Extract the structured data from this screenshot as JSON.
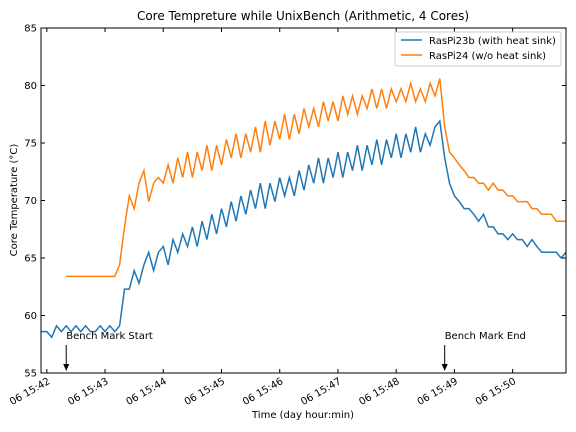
{
  "chart_data": {
    "type": "line",
    "title": "Core Tempreture while UnixBench (Arithmetic, 4 Cores)",
    "xlabel": "Time (day hour:min)",
    "ylabel": "Core Temperature (°C)",
    "x_range": [
      "06 15:41:54",
      "06 15:50:55"
    ],
    "ylim": [
      55,
      85
    ],
    "y_ticks": [
      55,
      60,
      65,
      70,
      75,
      80,
      85
    ],
    "x_ticks": [
      "06 15:42",
      "06 15:43",
      "06 15:44",
      "06 15:45",
      "06 15:46",
      "06 15:47",
      "06 15:48",
      "06 15:49",
      "06 15:50"
    ],
    "grid": false,
    "legend_position": "top-right",
    "series": [
      {
        "name": "RasPi23b (with heat sink)",
        "color": "#1f77b4",
        "points": [
          [
            "06 15:41:54",
            58.6
          ],
          [
            "06 15:42:00",
            58.6
          ],
          [
            "06 15:42:05",
            58.1
          ],
          [
            "06 15:42:10",
            59.1
          ],
          [
            "06 15:42:15",
            58.6
          ],
          [
            "06 15:42:20",
            59.1
          ],
          [
            "06 15:42:25",
            58.6
          ],
          [
            "06 15:42:30",
            59.1
          ],
          [
            "06 15:42:35",
            58.6
          ],
          [
            "06 15:42:40",
            59.1
          ],
          [
            "06 15:42:45",
            58.6
          ],
          [
            "06 15:42:50",
            58.6
          ],
          [
            "06 15:42:55",
            59.1
          ],
          [
            "06 15:43:00",
            58.6
          ],
          [
            "06 15:43:05",
            59.1
          ],
          [
            "06 15:43:10",
            58.6
          ],
          [
            "06 15:43:15",
            59.1
          ],
          [
            "06 15:43:20",
            62.3
          ],
          [
            "06 15:43:25",
            62.3
          ],
          [
            "06 15:43:30",
            63.9
          ],
          [
            "06 15:43:35",
            62.8
          ],
          [
            "06 15:43:40",
            64.4
          ],
          [
            "06 15:43:45",
            65.5
          ],
          [
            "06 15:43:50",
            63.9
          ],
          [
            "06 15:43:55",
            65.5
          ],
          [
            "06 15:44:00",
            66.0
          ],
          [
            "06 15:44:05",
            64.4
          ],
          [
            "06 15:44:10",
            66.6
          ],
          [
            "06 15:44:15",
            65.5
          ],
          [
            "06 15:44:20",
            67.1
          ],
          [
            "06 15:44:25",
            66.0
          ],
          [
            "06 15:44:30",
            67.7
          ],
          [
            "06 15:44:35",
            66.0
          ],
          [
            "06 15:44:40",
            68.2
          ],
          [
            "06 15:44:45",
            66.6
          ],
          [
            "06 15:44:50",
            68.8
          ],
          [
            "06 15:44:55",
            67.1
          ],
          [
            "06 15:45:00",
            69.3
          ],
          [
            "06 15:45:05",
            67.7
          ],
          [
            "06 15:45:10",
            69.9
          ],
          [
            "06 15:45:15",
            68.2
          ],
          [
            "06 15:45:20",
            70.4
          ],
          [
            "06 15:45:25",
            68.8
          ],
          [
            "06 15:45:30",
            70.9
          ],
          [
            "06 15:45:35",
            69.3
          ],
          [
            "06 15:45:40",
            71.5
          ],
          [
            "06 15:45:45",
            69.3
          ],
          [
            "06 15:45:50",
            71.5
          ],
          [
            "06 15:45:55",
            69.9
          ],
          [
            "06 15:46:00",
            72.0
          ],
          [
            "06 15:46:05",
            70.4
          ],
          [
            "06 15:46:10",
            72.0
          ],
          [
            "06 15:46:15",
            70.4
          ],
          [
            "06 15:46:20",
            72.6
          ],
          [
            "06 15:46:25",
            70.9
          ],
          [
            "06 15:46:30",
            73.1
          ],
          [
            "06 15:46:35",
            71.5
          ],
          [
            "06 15:46:40",
            73.7
          ],
          [
            "06 15:46:45",
            71.5
          ],
          [
            "06 15:46:50",
            73.7
          ],
          [
            "06 15:46:55",
            72.0
          ],
          [
            "06 15:47:00",
            74.2
          ],
          [
            "06 15:47:05",
            72.0
          ],
          [
            "06 15:47:10",
            74.2
          ],
          [
            "06 15:47:15",
            72.6
          ],
          [
            "06 15:47:20",
            74.8
          ],
          [
            "06 15:47:25",
            72.6
          ],
          [
            "06 15:47:30",
            74.8
          ],
          [
            "06 15:47:35",
            73.1
          ],
          [
            "06 15:47:40",
            75.3
          ],
          [
            "06 15:47:45",
            73.1
          ],
          [
            "06 15:47:50",
            75.3
          ],
          [
            "06 15:47:55",
            73.7
          ],
          [
            "06 15:48:00",
            75.8
          ],
          [
            "06 15:48:05",
            73.7
          ],
          [
            "06 15:48:10",
            75.8
          ],
          [
            "06 15:48:15",
            74.2
          ],
          [
            "06 15:48:20",
            76.4
          ],
          [
            "06 15:48:25",
            74.2
          ],
          [
            "06 15:48:30",
            75.8
          ],
          [
            "06 15:48:35",
            74.8
          ],
          [
            "06 15:48:40",
            76.4
          ],
          [
            "06 15:48:45",
            76.9
          ],
          [
            "06 15:48:50",
            73.7
          ],
          [
            "06 15:48:55",
            71.5
          ],
          [
            "06 15:49:00",
            70.4
          ],
          [
            "06 15:49:05",
            69.9
          ],
          [
            "06 15:49:10",
            69.3
          ],
          [
            "06 15:49:15",
            69.3
          ],
          [
            "06 15:49:20",
            68.8
          ],
          [
            "06 15:49:25",
            68.2
          ],
          [
            "06 15:49:30",
            68.8
          ],
          [
            "06 15:49:35",
            67.7
          ],
          [
            "06 15:49:40",
            67.7
          ],
          [
            "06 15:49:45",
            67.1
          ],
          [
            "06 15:49:50",
            67.1
          ],
          [
            "06 15:49:55",
            66.6
          ],
          [
            "06 15:50:00",
            67.1
          ],
          [
            "06 15:50:05",
            66.6
          ],
          [
            "06 15:50:10",
            66.6
          ],
          [
            "06 15:50:15",
            66.0
          ],
          [
            "06 15:50:20",
            66.6
          ],
          [
            "06 15:50:25",
            66.0
          ],
          [
            "06 15:50:30",
            65.5
          ],
          [
            "06 15:50:35",
            65.5
          ],
          [
            "06 15:50:40",
            65.5
          ],
          [
            "06 15:50:45",
            65.5
          ],
          [
            "06 15:50:50",
            65.0
          ],
          [
            "06 15:50:55",
            65.5
          ]
        ]
      },
      {
        "name": "RasPi24 (w/o heat sink)",
        "color": "#ff7f0e",
        "points": [
          [
            "06 15:42:20",
            63.4
          ],
          [
            "06 15:42:30",
            63.4
          ],
          [
            "06 15:42:40",
            63.4
          ],
          [
            "06 15:42:50",
            63.4
          ],
          [
            "06 15:43:00",
            63.4
          ],
          [
            "06 15:43:05",
            63.4
          ],
          [
            "06 15:43:10",
            63.4
          ],
          [
            "06 15:43:15",
            64.4
          ],
          [
            "06 15:43:20",
            67.7
          ],
          [
            "06 15:43:25",
            70.4
          ],
          [
            "06 15:43:30",
            69.3
          ],
          [
            "06 15:43:35",
            71.5
          ],
          [
            "06 15:43:40",
            72.6
          ],
          [
            "06 15:43:45",
            69.9
          ],
          [
            "06 15:43:50",
            71.5
          ],
          [
            "06 15:43:55",
            72.0
          ],
          [
            "06 15:44:00",
            71.5
          ],
          [
            "06 15:44:05",
            73.1
          ],
          [
            "06 15:44:10",
            71.5
          ],
          [
            "06 15:44:15",
            73.7
          ],
          [
            "06 15:44:20",
            72.0
          ],
          [
            "06 15:44:25",
            74.2
          ],
          [
            "06 15:44:30",
            72.0
          ],
          [
            "06 15:44:35",
            74.2
          ],
          [
            "06 15:44:40",
            72.6
          ],
          [
            "06 15:44:45",
            74.8
          ],
          [
            "06 15:44:50",
            72.6
          ],
          [
            "06 15:44:55",
            74.8
          ],
          [
            "06 15:45:00",
            73.1
          ],
          [
            "06 15:45:05",
            75.3
          ],
          [
            "06 15:45:10",
            73.7
          ],
          [
            "06 15:45:15",
            75.8
          ],
          [
            "06 15:45:20",
            73.7
          ],
          [
            "06 15:45:25",
            75.8
          ],
          [
            "06 15:45:30",
            74.2
          ],
          [
            "06 15:45:35",
            76.4
          ],
          [
            "06 15:45:40",
            74.2
          ],
          [
            "06 15:45:45",
            76.9
          ],
          [
            "06 15:45:50",
            74.8
          ],
          [
            "06 15:45:55",
            76.9
          ],
          [
            "06 15:46:00",
            75.3
          ],
          [
            "06 15:46:05",
            77.5
          ],
          [
            "06 15:46:10",
            75.3
          ],
          [
            "06 15:46:15",
            77.5
          ],
          [
            "06 15:46:20",
            75.8
          ],
          [
            "06 15:46:25",
            78.0
          ],
          [
            "06 15:46:30",
            76.4
          ],
          [
            "06 15:46:35",
            78.0
          ],
          [
            "06 15:46:40",
            76.4
          ],
          [
            "06 15:46:45",
            78.6
          ],
          [
            "06 15:46:50",
            76.9
          ],
          [
            "06 15:46:55",
            78.6
          ],
          [
            "06 15:47:00",
            76.9
          ],
          [
            "06 15:47:05",
            79.1
          ],
          [
            "06 15:47:10",
            77.5
          ],
          [
            "06 15:47:15",
            79.1
          ],
          [
            "06 15:47:20",
            77.5
          ],
          [
            "06 15:47:25",
            79.1
          ],
          [
            "06 15:47:30",
            78.0
          ],
          [
            "06 15:47:35",
            79.7
          ],
          [
            "06 15:47:40",
            78.0
          ],
          [
            "06 15:47:45",
            79.7
          ],
          [
            "06 15:47:50",
            78.0
          ],
          [
            "06 15:47:55",
            79.7
          ],
          [
            "06 15:48:00",
            78.6
          ],
          [
            "06 15:48:05",
            79.7
          ],
          [
            "06 15:48:10",
            78.6
          ],
          [
            "06 15:48:15",
            80.2
          ],
          [
            "06 15:48:20",
            78.6
          ],
          [
            "06 15:48:25",
            79.7
          ],
          [
            "06 15:48:30",
            78.6
          ],
          [
            "06 15:48:35",
            80.2
          ],
          [
            "06 15:48:40",
            79.1
          ],
          [
            "06 15:48:45",
            80.6
          ],
          [
            "06 15:48:50",
            76.4
          ],
          [
            "06 15:48:55",
            74.2
          ],
          [
            "06 15:49:00",
            73.7
          ],
          [
            "06 15:49:05",
            73.1
          ],
          [
            "06 15:49:10",
            72.6
          ],
          [
            "06 15:49:15",
            72.0
          ],
          [
            "06 15:49:20",
            72.0
          ],
          [
            "06 15:49:25",
            71.5
          ],
          [
            "06 15:49:30",
            71.5
          ],
          [
            "06 15:49:35",
            70.9
          ],
          [
            "06 15:49:40",
            71.5
          ],
          [
            "06 15:49:45",
            70.9
          ],
          [
            "06 15:49:50",
            70.9
          ],
          [
            "06 15:49:55",
            70.4
          ],
          [
            "06 15:50:00",
            70.4
          ],
          [
            "06 15:50:05",
            69.9
          ],
          [
            "06 15:50:10",
            69.9
          ],
          [
            "06 15:50:15",
            69.9
          ],
          [
            "06 15:50:20",
            69.3
          ],
          [
            "06 15:50:25",
            69.3
          ],
          [
            "06 15:50:30",
            68.8
          ],
          [
            "06 15:50:35",
            68.8
          ],
          [
            "06 15:50:40",
            68.8
          ],
          [
            "06 15:50:45",
            68.2
          ],
          [
            "06 15:50:50",
            68.2
          ],
          [
            "06 15:50:55",
            68.2
          ]
        ]
      }
    ],
    "annotations": [
      {
        "text": "Bench Mark Start",
        "x": "06 15:42:20",
        "y": 55
      },
      {
        "text": "Bench Mark End",
        "x": "06 15:48:50",
        "y": 55
      }
    ]
  }
}
